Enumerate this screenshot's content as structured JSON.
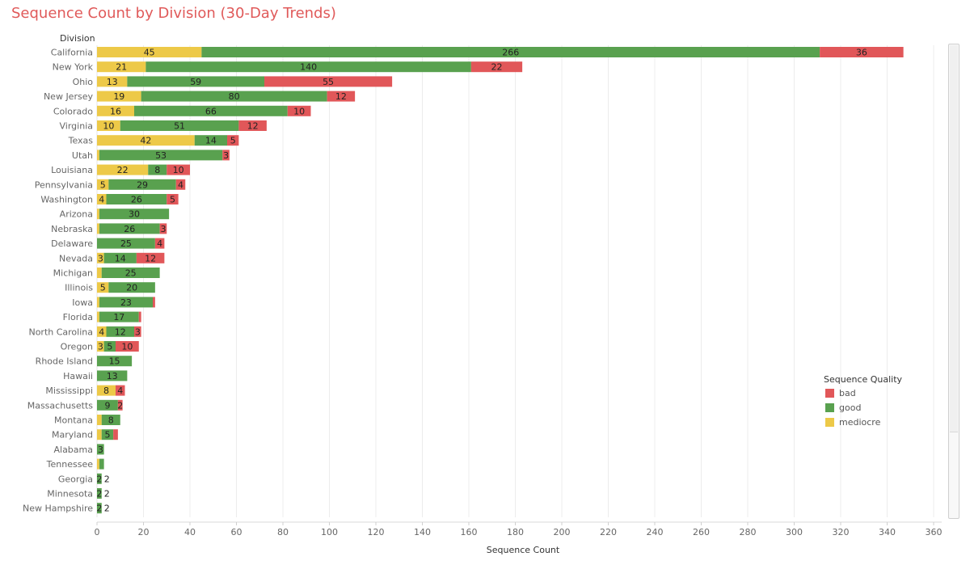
{
  "chart_data": {
    "type": "bar",
    "orientation": "horizontal",
    "stacked": true,
    "title": "Sequence Count by Division (30-Day Trends)",
    "dimension_header": "Division",
    "xlabel": "Sequence Count",
    "xlim": [
      0,
      360
    ],
    "xticks": [
      0,
      20,
      40,
      60,
      80,
      100,
      120,
      140,
      160,
      180,
      200,
      220,
      240,
      260,
      280,
      300,
      320,
      340,
      360
    ],
    "legend": {
      "title": "Sequence Quality",
      "position": "right",
      "items": [
        {
          "name": "bad",
          "color": "#e15759"
        },
        {
          "name": "good",
          "color": "#59a14f"
        },
        {
          "name": "mediocre",
          "color": "#edc948"
        }
      ]
    },
    "stack_order": [
      "mediocre",
      "good",
      "bad"
    ],
    "categories": [
      "California",
      "New York",
      "Ohio",
      "New Jersey",
      "Colorado",
      "Virginia",
      "Texas",
      "Utah",
      "Louisiana",
      "Pennsylvania",
      "Washington",
      "Arizona",
      "Nebraska",
      "Delaware",
      "Nevada",
      "Michigan",
      "Illinois",
      "Iowa",
      "Florida",
      "North Carolina",
      "Oregon",
      "Rhode Island",
      "Hawaii",
      "Mississippi",
      "Massachusetts",
      "Montana",
      "Maryland",
      "Alabama",
      "Tennessee",
      "Georgia",
      "Minnesota",
      "New Hampshire"
    ],
    "series": [
      {
        "name": "mediocre",
        "color": "#edc948",
        "values": [
          45,
          21,
          13,
          19,
          16,
          10,
          42,
          1,
          22,
          5,
          4,
          1,
          1,
          0,
          3,
          2,
          5,
          1,
          1,
          4,
          3,
          0,
          0,
          8,
          0,
          2,
          2,
          0,
          1,
          0,
          0,
          0
        ],
        "labels": [
          "45",
          "21",
          "13",
          "19",
          "16",
          "10",
          "42",
          "",
          "22",
          "5",
          "4",
          "",
          "",
          "",
          "3",
          "",
          "5",
          "",
          "",
          "4",
          "3",
          "",
          "",
          "8",
          "",
          "",
          "",
          "",
          "",
          "",
          "",
          ""
        ]
      },
      {
        "name": "good",
        "color": "#59a14f",
        "values": [
          266,
          140,
          59,
          80,
          66,
          51,
          14,
          53,
          8,
          29,
          26,
          30,
          26,
          25,
          14,
          25,
          20,
          23,
          17,
          12,
          5,
          15,
          13,
          0,
          9,
          8,
          5,
          3,
          2,
          2,
          2,
          2
        ],
        "labels": [
          "266",
          "140",
          "59",
          "80",
          "66",
          "51",
          "14",
          "53",
          "8",
          "29",
          "26",
          "30",
          "26",
          "25",
          "14",
          "25",
          "20",
          "23",
          "17",
          "12",
          "5",
          "15",
          "13",
          "",
          "9",
          "8",
          "5",
          "3",
          "",
          "2",
          "2",
          "2"
        ]
      },
      {
        "name": "bad",
        "color": "#e15759",
        "values": [
          36,
          22,
          55,
          12,
          10,
          12,
          5,
          3,
          10,
          4,
          5,
          0,
          3,
          4,
          12,
          0,
          0,
          1,
          1,
          3,
          10,
          0,
          0,
          4,
          2,
          0,
          2,
          0,
          0,
          0,
          0,
          0
        ],
        "labels": [
          "36",
          "22",
          "55",
          "12",
          "10",
          "12",
          "5",
          "3",
          "10",
          "4",
          "5",
          "",
          "3",
          "4",
          "12",
          "",
          "",
          "",
          "",
          "3",
          "10",
          "",
          "",
          "4",
          "2",
          "",
          "",
          "",
          "",
          "",
          "",
          ""
        ]
      }
    ],
    "totals_outside": [
      "",
      "",
      "",
      "",
      "",
      "",
      "",
      "",
      "",
      "",
      "",
      "",
      "",
      "",
      "",
      "",
      "",
      "",
      "",
      "",
      "",
      "",
      "",
      "",
      "",
      "",
      "",
      "",
      "",
      "2",
      "2",
      "2"
    ],
    "gridlines": true
  }
}
